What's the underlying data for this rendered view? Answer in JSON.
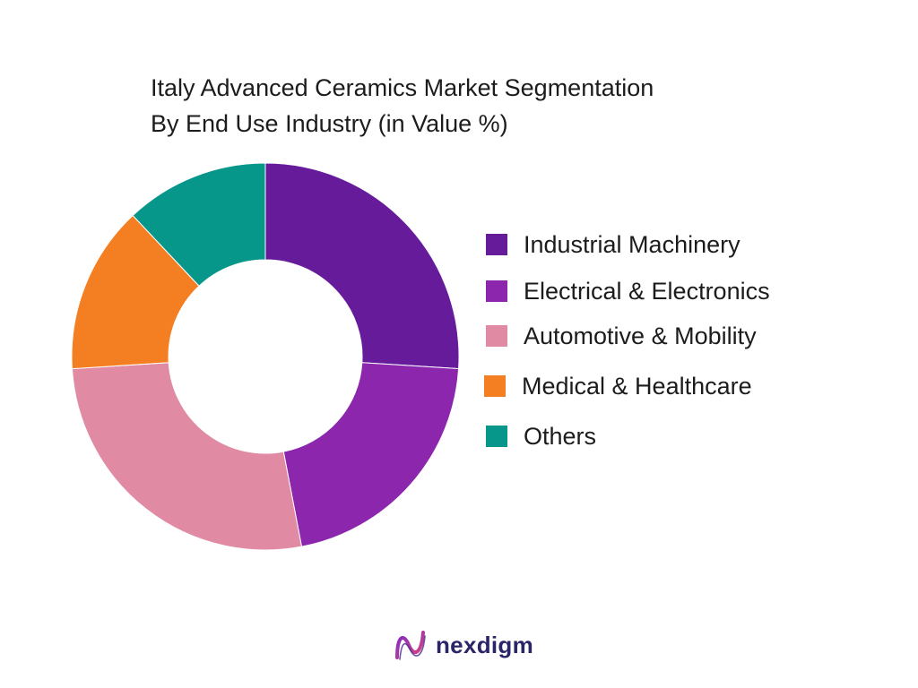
{
  "chart_data": {
    "type": "pie",
    "donut": true,
    "title_lines": [
      "Italy Advanced Ceramics Market Segmentation",
      "By End Use Industry (in Value %)"
    ],
    "categories": [
      "Industrial Machinery",
      "Electrical & Electronics",
      "Automotive & Mobility",
      "Medical & Healthcare",
      "Others"
    ],
    "values": [
      26,
      21,
      27,
      14,
      12
    ],
    "unit": "%",
    "colors": [
      "#661b9b",
      "#8c26ad",
      "#e08aa3",
      "#f47f22",
      "#07978a"
    ],
    "legend_position": "right"
  },
  "brand": {
    "name": "nexdigm",
    "logo_icon": "nexdigm-wave-icon"
  }
}
